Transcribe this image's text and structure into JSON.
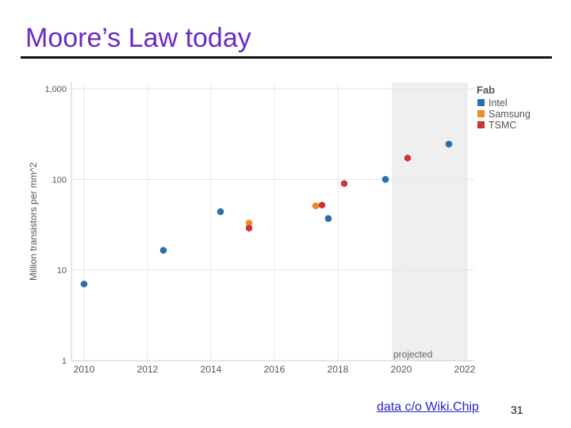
{
  "slide": {
    "title": "Moore’s Law today",
    "credit": "data c/o Wiki.Chip",
    "page_number": "31"
  },
  "chart_data": {
    "type": "scatter",
    "ylabel": "Million transistors per mm^2",
    "yscale": "log",
    "xlim": [
      2009.6,
      2022.3
    ],
    "ylim": [
      1,
      1000
    ],
    "x_ticks": [
      2010,
      2012,
      2014,
      2016,
      2018,
      2020,
      2022
    ],
    "x_tick_labels": [
      "2010",
      "2012",
      "2014",
      "2016",
      "2018",
      "2020",
      "2022"
    ],
    "y_ticks": [
      1,
      10,
      100,
      1000
    ],
    "y_tick_labels": [
      "1",
      "10",
      "100",
      "1,000"
    ],
    "legend_title": "Fab",
    "legend_position": "top-right",
    "annotation": {
      "text": "projected",
      "x_start": 2019.7,
      "x_end": 2022.1
    },
    "series": [
      {
        "name": "Intel",
        "color": "#2c6fa8",
        "marker": "circle",
        "points": [
          [
            2010,
            7
          ],
          [
            2012.5,
            16.5
          ],
          [
            2014.3,
            44
          ],
          [
            2017.7,
            37
          ],
          [
            2019.5,
            100
          ],
          [
            2021.5,
            245
          ]
        ]
      },
      {
        "name": "Samsung",
        "color": "#ee8a2c",
        "marker": "circle",
        "points": [
          [
            2015.2,
            33
          ],
          [
            2017.3,
            51
          ]
        ]
      },
      {
        "name": "TSMC",
        "color": "#cc3333",
        "marker": "hexagon",
        "points": [
          [
            2015.2,
            29
          ],
          [
            2017.5,
            52
          ],
          [
            2018.2,
            90
          ],
          [
            2020.2,
            172
          ]
        ]
      }
    ]
  }
}
